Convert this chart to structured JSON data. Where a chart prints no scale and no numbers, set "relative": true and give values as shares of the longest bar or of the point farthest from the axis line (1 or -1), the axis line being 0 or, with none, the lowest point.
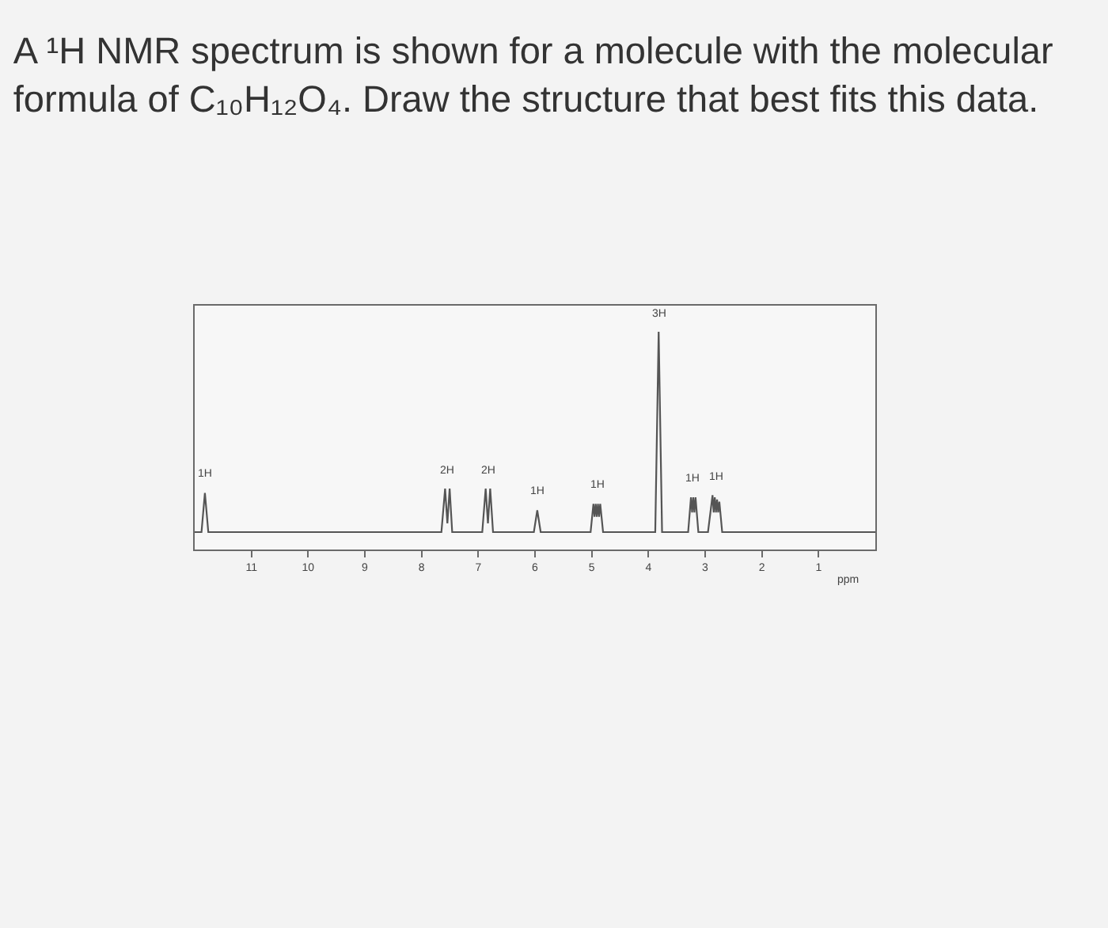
{
  "chart_data": {
    "type": "line",
    "title": "A ¹H NMR spectrum is shown for a molecule with the molecular formula of C₁₀H₁₂O₄. Draw the structure that best fits this data.",
    "xlabel": "ppm",
    "relative": true,
    "xlim": [
      12,
      0
    ],
    "xticks": [
      11,
      10,
      9,
      8,
      7,
      6,
      5,
      4,
      3,
      2,
      1
    ],
    "x": [
      12.0,
      11.88,
      11.82,
      11.76,
      7.65,
      7.585,
      7.545,
      7.505,
      7.46,
      6.93,
      6.87,
      6.83,
      6.79,
      6.74,
      6.02,
      5.96,
      5.9,
      5.02,
      4.97,
      4.95,
      4.93,
      4.91,
      4.89,
      4.87,
      4.85,
      4.8,
      3.88,
      3.82,
      3.76,
      3.3,
      3.25,
      3.23,
      3.21,
      3.19,
      3.17,
      3.12,
      2.95,
      2.87,
      2.85,
      2.83,
      2.81,
      2.79,
      2.77,
      2.75,
      2.7,
      0.0
    ],
    "series": [
      {
        "color": "#555555",
        "values": [
          0.08,
          0.08,
          0.26,
          0.08,
          0.08,
          0.28,
          0.12,
          0.28,
          0.08,
          0.08,
          0.28,
          0.12,
          0.28,
          0.08,
          0.08,
          0.18,
          0.08,
          0.08,
          0.21,
          0.15,
          0.21,
          0.15,
          0.21,
          0.15,
          0.21,
          0.08,
          0.08,
          1.0,
          0.08,
          0.08,
          0.24,
          0.17,
          0.24,
          0.17,
          0.24,
          0.08,
          0.08,
          0.25,
          0.17,
          0.24,
          0.17,
          0.23,
          0.17,
          0.22,
          0.08,
          0.08
        ]
      }
    ],
    "annotations": [
      {
        "text": "1H",
        "x": 11.82,
        "y": 0.26
      },
      {
        "text": "2H",
        "x": 7.55,
        "y": 0.28
      },
      {
        "text": "2H",
        "x": 6.83,
        "y": 0.28
      },
      {
        "text": "1H",
        "x": 5.96,
        "y": 0.18
      },
      {
        "text": "1H",
        "x": 4.91,
        "y": 0.21
      },
      {
        "text": "3H",
        "x": 3.82,
        "y": 1.0
      },
      {
        "text": "1H",
        "x": 3.21,
        "y": 0.24
      },
      {
        "text": "1H",
        "x": 2.8,
        "y": 0.25
      }
    ]
  }
}
